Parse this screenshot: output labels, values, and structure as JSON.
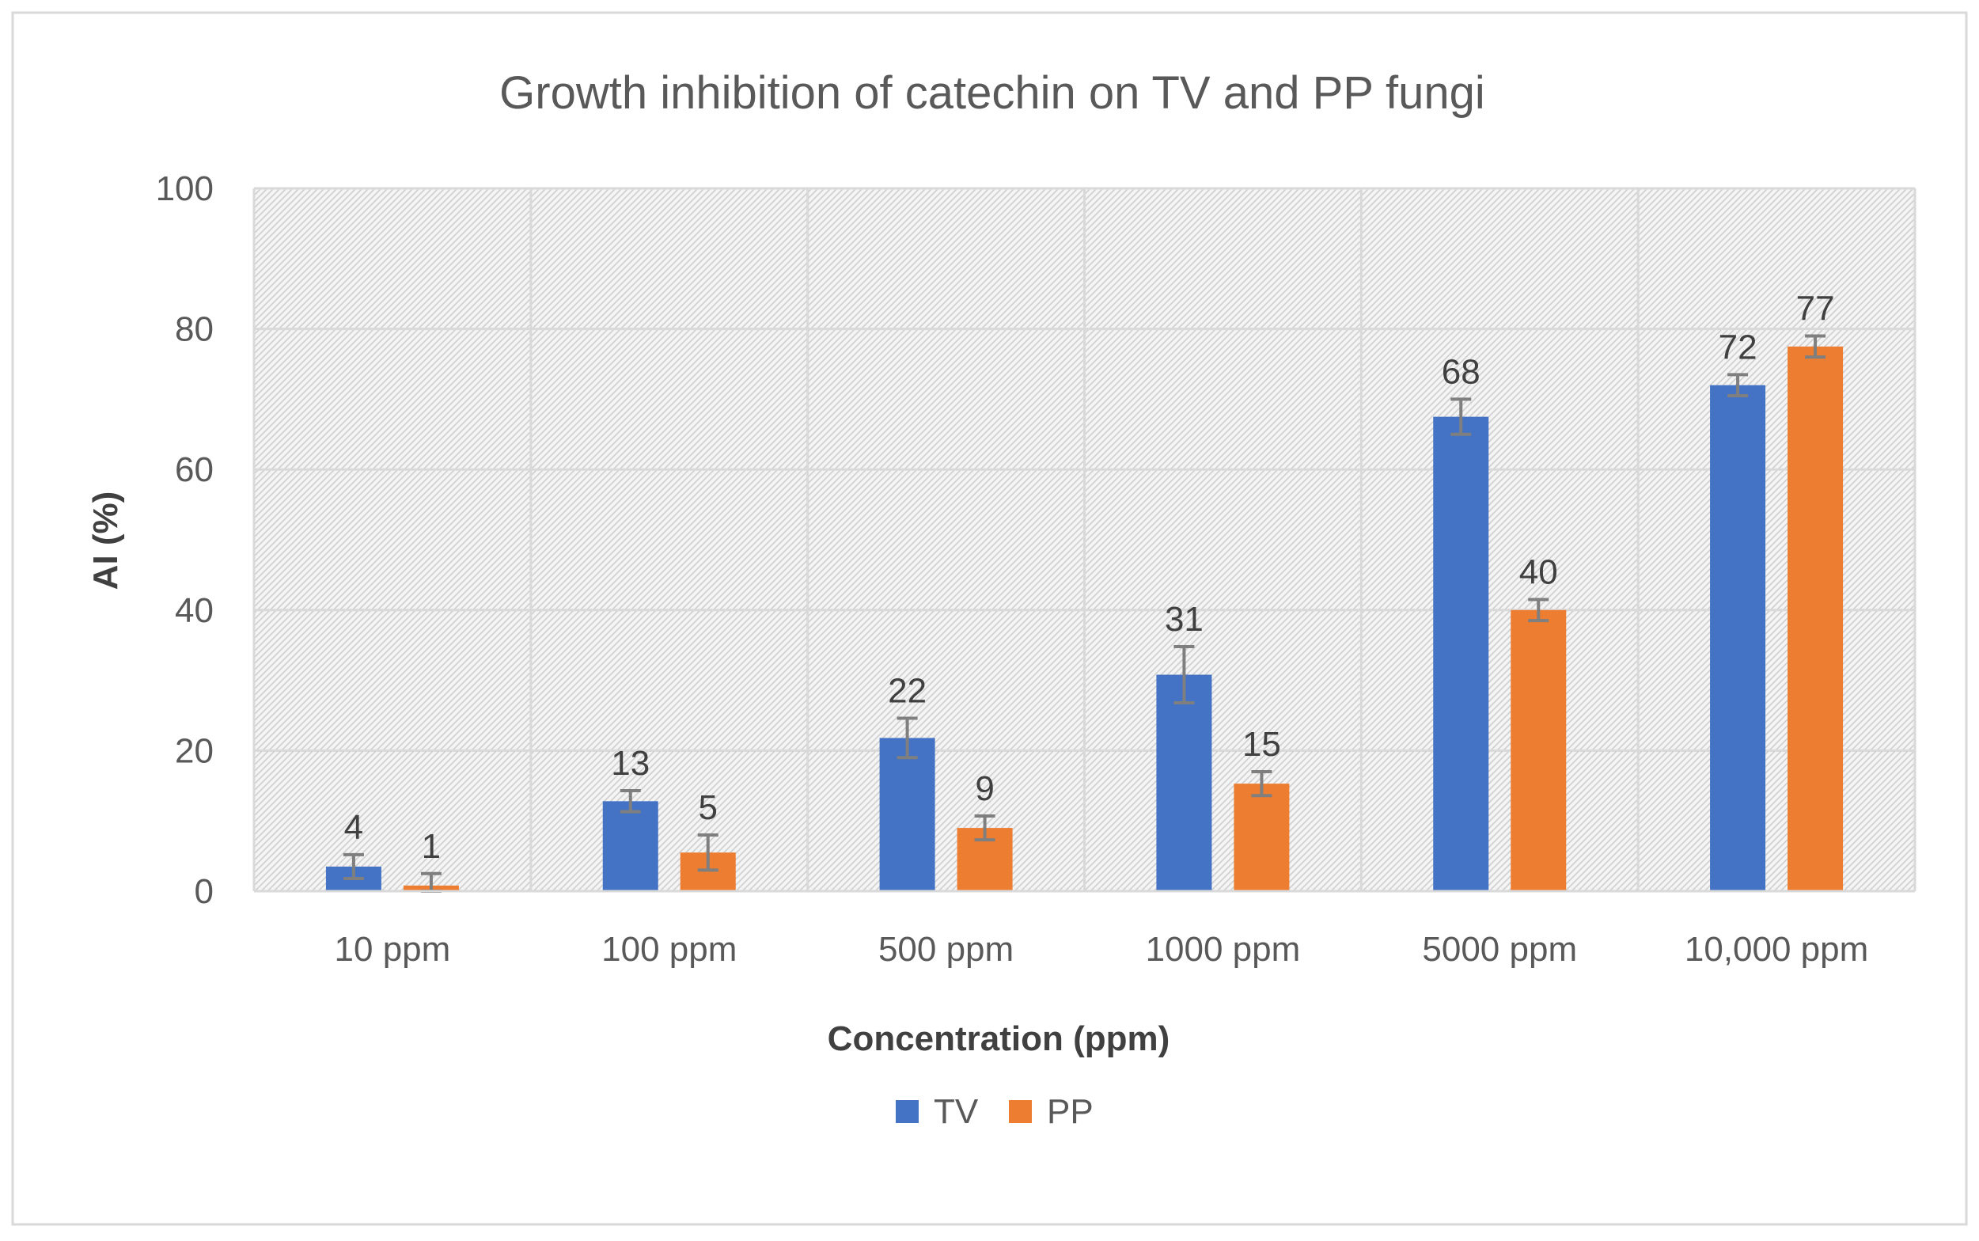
{
  "chart_data": {
    "type": "bar",
    "title": "Growth inhibition of catechin on TV and PP fungi",
    "xlabel": "Concentration (ppm)",
    "ylabel": "AI (%)",
    "categories": [
      "10 ppm",
      "100 ppm",
      "500 ppm",
      "1000 ppm",
      "5000 ppm",
      "10,000 ppm"
    ],
    "series": [
      {
        "name": "TV",
        "color": "#4472C4",
        "values": [
          3.5,
          12.8,
          21.8,
          30.8,
          67.5,
          72
        ],
        "labels": [
          "4",
          "13",
          "22",
          "31",
          "68",
          "72"
        ],
        "errors": [
          1.7,
          1.5,
          2.8,
          4.0,
          2.5,
          1.5
        ]
      },
      {
        "name": "PP",
        "color": "#ED7D31",
        "values": [
          0.8,
          5.5,
          9,
          15.3,
          40,
          77.5
        ],
        "labels": [
          "1",
          "5",
          "9",
          "15",
          "40",
          "77"
        ],
        "errors": [
          1.7,
          2.5,
          1.7,
          1.7,
          1.5,
          1.5
        ]
      }
    ],
    "ylim": [
      0,
      100
    ],
    "yticks": [
      "0",
      "20",
      "40",
      "60",
      "80",
      "100"
    ],
    "grid": true,
    "legend": "bottom-center",
    "error_bar_color": "#7F7F7F",
    "title_color": "#595959",
    "text_color": "#404040"
  }
}
